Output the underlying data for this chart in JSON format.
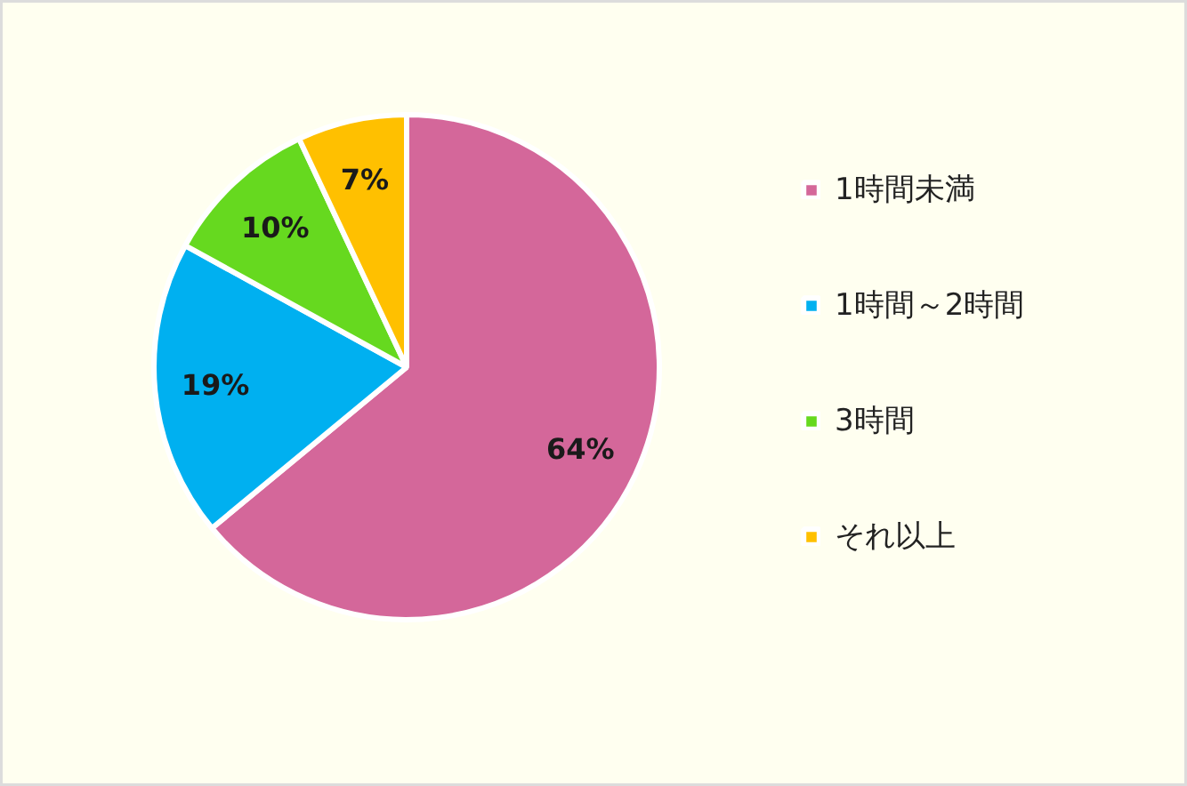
{
  "chart_data": {
    "type": "pie",
    "categories": [
      "1時間未満",
      "1時間～2時間",
      "3時間",
      "それ以上"
    ],
    "values": [
      64,
      19,
      10,
      7
    ],
    "colors": [
      "#d4679a",
      "#00b0f0",
      "#66d91f",
      "#ffc000"
    ],
    "value_labels": [
      "64%",
      "19%",
      "10%",
      "7%"
    ],
    "legend": "right"
  }
}
